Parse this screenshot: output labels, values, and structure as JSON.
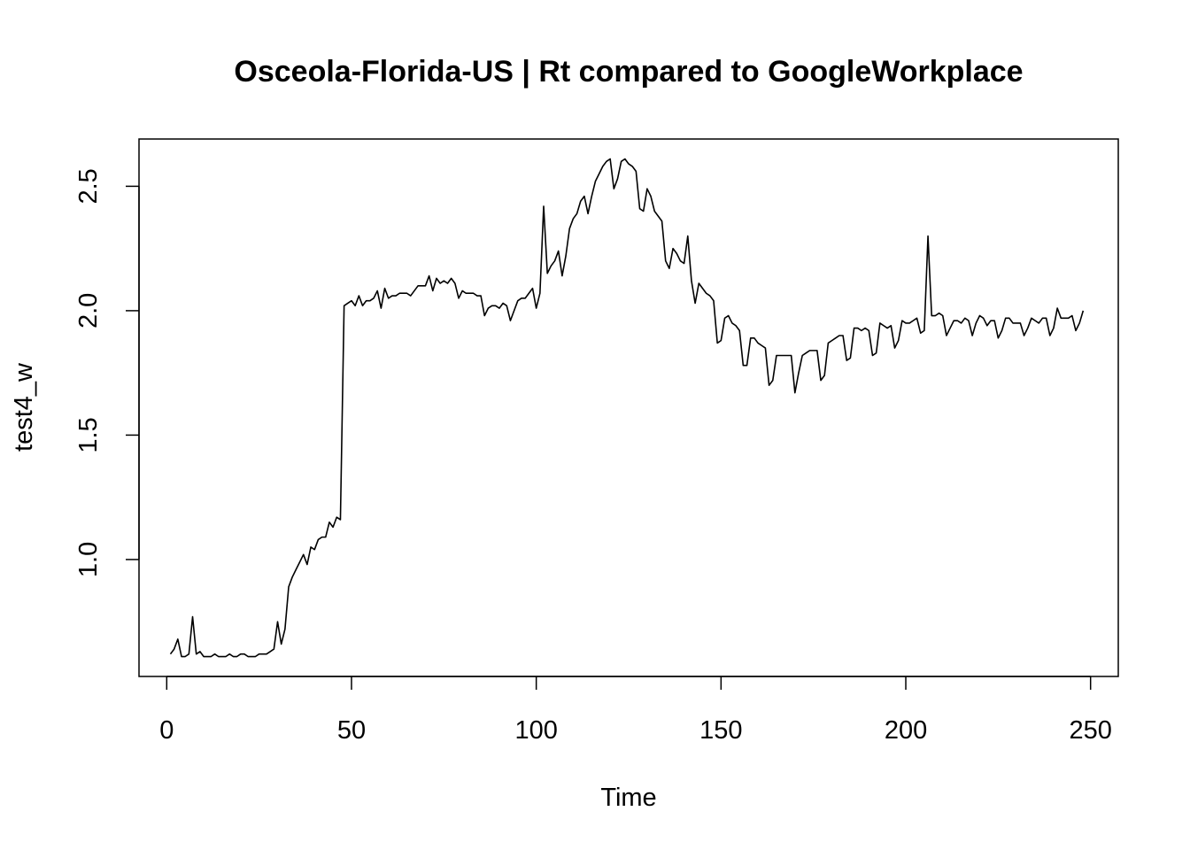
{
  "chart_data": {
    "type": "line",
    "title": "Osceola-Florida-US | Rt compared to GoogleWorkplace",
    "xlabel": "Time",
    "ylabel": "test4_w",
    "xlim": [
      -7.5,
      257.5
    ],
    "ylim": [
      0.53,
      2.69
    ],
    "x_ticks": [
      0,
      50,
      100,
      150,
      200,
      250
    ],
    "y_ticks": [
      1.0,
      1.5,
      2.0,
      2.5
    ],
    "x_tick_labels": [
      "0",
      "50",
      "100",
      "150",
      "200",
      "250"
    ],
    "y_tick_labels": [
      "1.0",
      "1.5",
      "2.0",
      "2.5"
    ],
    "grid": false,
    "legend": "none",
    "line_color": "#000000",
    "series": [
      {
        "x_start": 1,
        "values": [
          0.62,
          0.64,
          0.68,
          0.61,
          0.61,
          0.62,
          0.77,
          0.62,
          0.63,
          0.61,
          0.61,
          0.61,
          0.62,
          0.61,
          0.61,
          0.61,
          0.62,
          0.61,
          0.61,
          0.62,
          0.62,
          0.61,
          0.61,
          0.61,
          0.62,
          0.62,
          0.62,
          0.63,
          0.64,
          0.75,
          0.66,
          0.72,
          0.89,
          0.93,
          0.96,
          0.99,
          1.02,
          0.98,
          1.05,
          1.04,
          1.08,
          1.09,
          1.09,
          1.15,
          1.13,
          1.17,
          1.16,
          2.02,
          2.03,
          2.04,
          2.02,
          2.06,
          2.02,
          2.04,
          2.04,
          2.05,
          2.08,
          2.01,
          2.09,
          2.05,
          2.06,
          2.06,
          2.07,
          2.07,
          2.07,
          2.06,
          2.08,
          2.1,
          2.1,
          2.1,
          2.14,
          2.08,
          2.13,
          2.11,
          2.12,
          2.11,
          2.13,
          2.11,
          2.05,
          2.08,
          2.07,
          2.07,
          2.07,
          2.06,
          2.06,
          1.98,
          2.01,
          2.02,
          2.02,
          2.01,
          2.03,
          2.02,
          1.96,
          2.0,
          2.04,
          2.05,
          2.05,
          2.07,
          2.09,
          2.01,
          2.07,
          2.42,
          2.15,
          2.18,
          2.2,
          2.24,
          2.14,
          2.22,
          2.33,
          2.37,
          2.39,
          2.44,
          2.46,
          2.39,
          2.46,
          2.52,
          2.55,
          2.58,
          2.6,
          2.61,
          2.49,
          2.53,
          2.6,
          2.61,
          2.59,
          2.58,
          2.56,
          2.41,
          2.4,
          2.49,
          2.46,
          2.4,
          2.38,
          2.36,
          2.2,
          2.17,
          2.25,
          2.23,
          2.2,
          2.19,
          2.3,
          2.12,
          2.03,
          2.11,
          2.09,
          2.07,
          2.06,
          2.04,
          1.87,
          1.88,
          1.97,
          1.98,
          1.95,
          1.94,
          1.92,
          1.78,
          1.78,
          1.89,
          1.89,
          1.87,
          1.86,
          1.85,
          1.7,
          1.72,
          1.82,
          1.82,
          1.82,
          1.82,
          1.82,
          1.67,
          1.75,
          1.82,
          1.83,
          1.84,
          1.84,
          1.84,
          1.72,
          1.74,
          1.87,
          1.88,
          1.89,
          1.9,
          1.9,
          1.8,
          1.81,
          1.93,
          1.93,
          1.92,
          1.93,
          1.92,
          1.82,
          1.83,
          1.95,
          1.94,
          1.93,
          1.94,
          1.85,
          1.88,
          1.96,
          1.95,
          1.95,
          1.96,
          1.97,
          1.91,
          1.92,
          2.3,
          1.98,
          1.98,
          1.99,
          1.98,
          1.9,
          1.93,
          1.96,
          1.96,
          1.95,
          1.97,
          1.96,
          1.9,
          1.95,
          1.98,
          1.97,
          1.94,
          1.96,
          1.96,
          1.89,
          1.92,
          1.97,
          1.97,
          1.95,
          1.95,
          1.95,
          1.9,
          1.93,
          1.97,
          1.96,
          1.95,
          1.97,
          1.97,
          1.9,
          1.93,
          2.01,
          1.97,
          1.97,
          1.97,
          1.98,
          1.92,
          1.95,
          2.0
        ]
      }
    ]
  }
}
